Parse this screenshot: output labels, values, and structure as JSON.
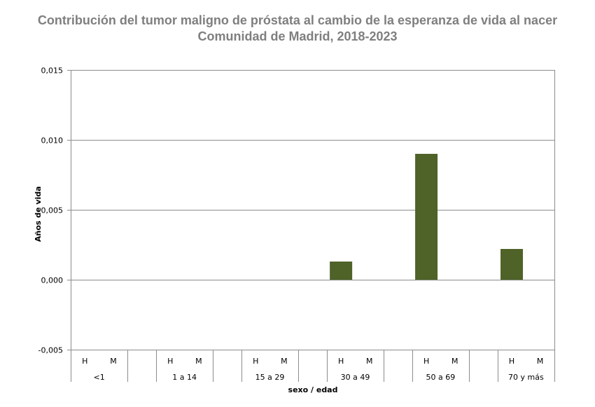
{
  "chart_data": {
    "type": "bar",
    "title": "Contribución del tumor maligno de próstata al cambio de la esperanza de vida al nacer",
    "subtitle": "Comunidad de Madrid, 2018-2023",
    "xlabel": "sexo / edad",
    "ylabel": "Años de vida",
    "ylim": [
      -0.005,
      0.015
    ],
    "yticks": [
      "0,015",
      "0,010",
      "0,005",
      "0,000",
      "-0,005"
    ],
    "ytick_values": [
      0.015,
      0.01,
      0.005,
      0.0,
      -0.005
    ],
    "grid": true,
    "legend": null,
    "bar_color": "#4f6228",
    "groups": [
      "<1",
      "1 a 14",
      "15 a 29",
      "30 a 49",
      "50 a 69",
      "70 y más"
    ],
    "sexes": [
      "H",
      "M"
    ],
    "categories": [
      "<1 H",
      "<1 M",
      "1 a 14 H",
      "1 a 14 M",
      "15 a 29 H",
      "15 a 29 M",
      "30 a 49 H",
      "30 a 49 M",
      "50 a 69 H",
      "50 a 69 M",
      "70 y más H",
      "70 y más M"
    ],
    "values": [
      0,
      0,
      0,
      0,
      0,
      0,
      0.0013,
      0,
      0.009,
      0,
      0.0022,
      0
    ]
  },
  "header": {
    "title_line1": "Contribución del tumor maligno de próstata al cambio de la esperanza de vida al nacer",
    "title_line2": "Comunidad de Madrid, 2018-2023"
  }
}
